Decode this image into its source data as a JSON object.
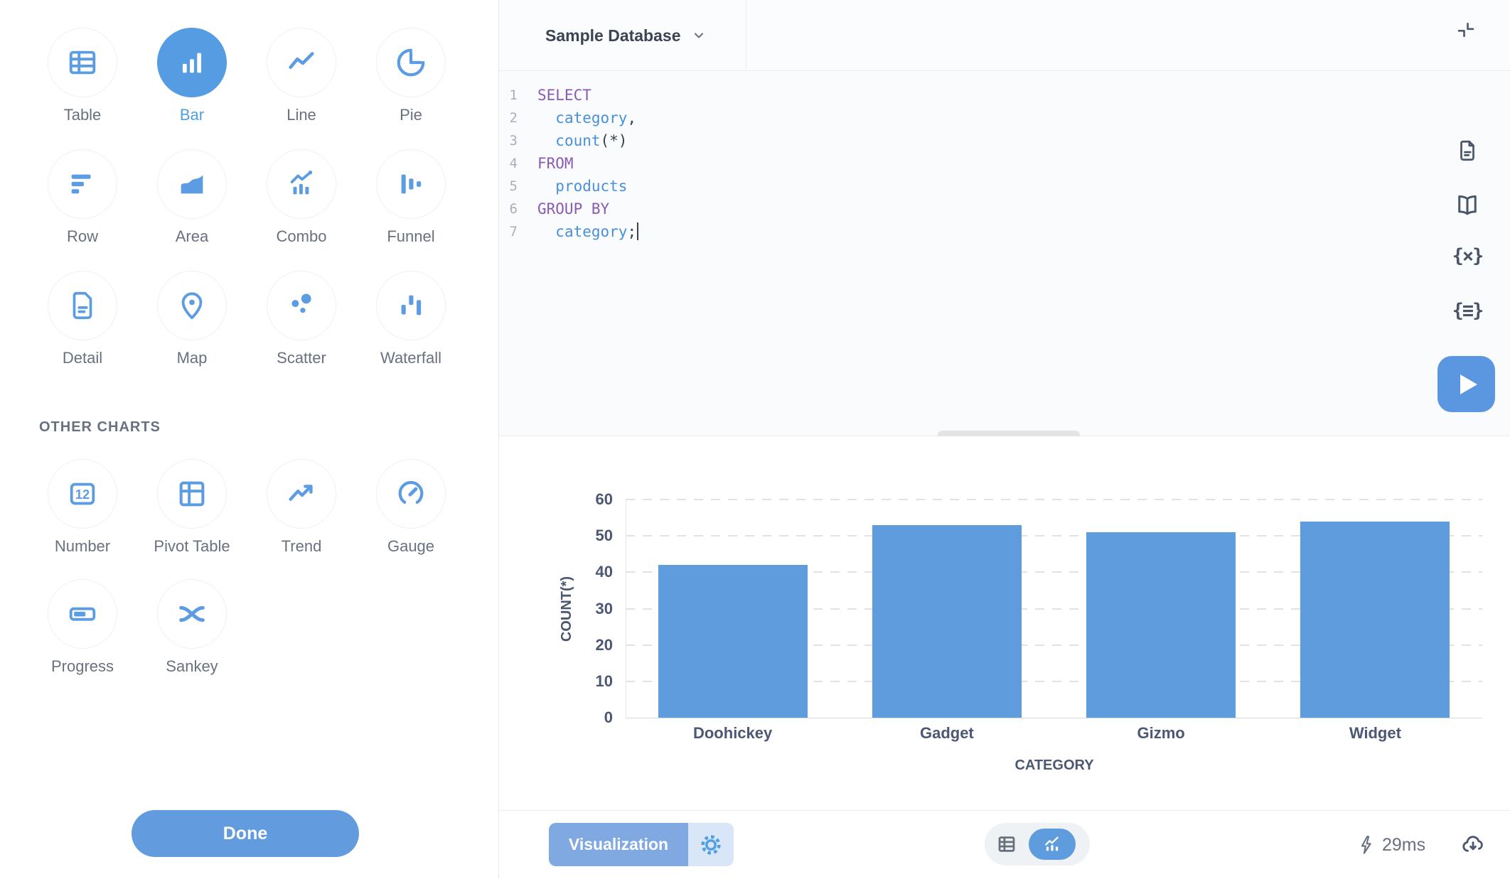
{
  "sidebar": {
    "chart_types": [
      {
        "label": "Table",
        "icon": "table-icon",
        "selected": false
      },
      {
        "label": "Bar",
        "icon": "bar-icon",
        "selected": true
      },
      {
        "label": "Line",
        "icon": "line-icon",
        "selected": false
      },
      {
        "label": "Pie",
        "icon": "pie-icon",
        "selected": false
      },
      {
        "label": "Row",
        "icon": "row-icon",
        "selected": false
      },
      {
        "label": "Area",
        "icon": "area-icon",
        "selected": false
      },
      {
        "label": "Combo",
        "icon": "combo-icon",
        "selected": false
      },
      {
        "label": "Funnel",
        "icon": "funnel-icon",
        "selected": false
      },
      {
        "label": "Detail",
        "icon": "detail-icon",
        "selected": false
      },
      {
        "label": "Map",
        "icon": "map-icon",
        "selected": false
      },
      {
        "label": "Scatter",
        "icon": "scatter-icon",
        "selected": false
      },
      {
        "label": "Waterfall",
        "icon": "waterfall-icon",
        "selected": false
      }
    ],
    "other_charts_heading": "OTHER CHARTS",
    "other_charts": [
      {
        "label": "Number",
        "icon": "number-icon",
        "selected": false
      },
      {
        "label": "Pivot Table",
        "icon": "pivot-icon",
        "selected": false
      },
      {
        "label": "Trend",
        "icon": "trend-icon",
        "selected": false
      },
      {
        "label": "Gauge",
        "icon": "gauge-icon",
        "selected": false
      },
      {
        "label": "Progress",
        "icon": "progress-icon",
        "selected": false
      },
      {
        "label": "Sankey",
        "icon": "sankey-icon",
        "selected": false
      }
    ],
    "done_label": "Done"
  },
  "editor": {
    "database": "Sample Database",
    "lines": [
      {
        "num": "1",
        "cursor": false,
        "segments": [
          {
            "t": "SELECT",
            "c": "kw"
          }
        ]
      },
      {
        "num": "2",
        "cursor": false,
        "segments": [
          {
            "t": "  ",
            "c": "pl"
          },
          {
            "t": "category",
            "c": "id"
          },
          {
            "t": ",",
            "c": "pl"
          }
        ]
      },
      {
        "num": "3",
        "cursor": false,
        "segments": [
          {
            "t": "  ",
            "c": "pl"
          },
          {
            "t": "count",
            "c": "id"
          },
          {
            "t": "(*)",
            "c": "pl"
          }
        ]
      },
      {
        "num": "4",
        "cursor": false,
        "segments": [
          {
            "t": "FROM",
            "c": "kw"
          }
        ]
      },
      {
        "num": "5",
        "cursor": false,
        "segments": [
          {
            "t": "  ",
            "c": "pl"
          },
          {
            "t": "products",
            "c": "id"
          }
        ]
      },
      {
        "num": "6",
        "cursor": false,
        "segments": [
          {
            "t": "GROUP BY",
            "c": "kw"
          }
        ]
      },
      {
        "num": "7",
        "cursor": true,
        "segments": [
          {
            "t": "  ",
            "c": "pl"
          },
          {
            "t": "category",
            "c": "id"
          },
          {
            "t": ";",
            "c": "pl"
          }
        ]
      }
    ]
  },
  "chart_data": {
    "type": "bar",
    "categories": [
      "Doohickey",
      "Gadget",
      "Gizmo",
      "Widget"
    ],
    "values": [
      42,
      53,
      51,
      54
    ],
    "title": "",
    "xlabel": "CATEGORY",
    "ylabel": "COUNT(*)",
    "ylim": [
      0,
      60
    ],
    "yticks": [
      0,
      10,
      20,
      30,
      40,
      50,
      60
    ],
    "grid": "dashed horizontal",
    "legend": "none",
    "bar_color": "#5E9CDE"
  },
  "footer": {
    "visualization_label": "Visualization",
    "duration": "29ms"
  },
  "colors": {
    "brand_blue": "#509EE3",
    "bar_fill": "#5E9CDE",
    "sql_keyword": "#8A5BB2",
    "sql_identifier": "#4A90D9",
    "text_navy": "#4C5773"
  }
}
